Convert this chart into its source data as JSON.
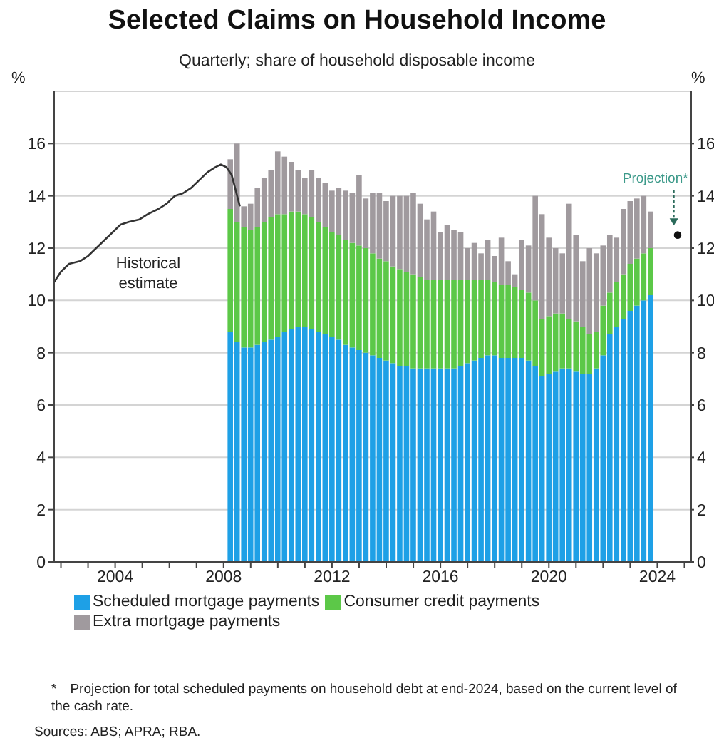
{
  "chart_data": {
    "type": "bar",
    "stacked": true,
    "title": "Selected Claims on Household Income",
    "subtitle": "Quarterly; share of household disposable income",
    "ylabel": "%",
    "y2label": "%",
    "x": [
      2008.25,
      2008.5,
      2008.75,
      2009,
      2009.25,
      2009.5,
      2009.75,
      2010,
      2010.25,
      2010.5,
      2010.75,
      2011,
      2011.25,
      2011.5,
      2011.75,
      2012,
      2012.25,
      2012.5,
      2012.75,
      2013,
      2013.25,
      2013.5,
      2013.75,
      2014,
      2014.25,
      2014.5,
      2014.75,
      2015,
      2015.25,
      2015.5,
      2015.75,
      2016,
      2016.25,
      2016.5,
      2016.75,
      2017,
      2017.25,
      2017.5,
      2017.75,
      2018,
      2018.25,
      2018.5,
      2018.75,
      2019,
      2019.25,
      2019.5,
      2019.75,
      2020,
      2020.25,
      2020.5,
      2020.75,
      2021,
      2021.25,
      2021.5,
      2021.75,
      2022,
      2022.25,
      2022.5,
      2022.75,
      2023,
      2023.25,
      2023.5,
      2023.75
    ],
    "series": [
      {
        "name": "Scheduled mortgage payments",
        "color": "#1ea0e6",
        "values": [
          8.8,
          8.4,
          8.2,
          8.2,
          8.3,
          8.4,
          8.5,
          8.6,
          8.8,
          8.9,
          9.0,
          9.0,
          8.9,
          8.8,
          8.7,
          8.6,
          8.5,
          8.3,
          8.2,
          8.1,
          8.0,
          7.9,
          7.8,
          7.7,
          7.6,
          7.5,
          7.5,
          7.4,
          7.4,
          7.4,
          7.4,
          7.4,
          7.4,
          7.4,
          7.5,
          7.6,
          7.7,
          7.8,
          7.9,
          7.9,
          7.8,
          7.8,
          7.8,
          7.8,
          7.7,
          7.5,
          7.1,
          7.2,
          7.3,
          7.4,
          7.4,
          7.3,
          7.2,
          7.2,
          7.4,
          7.9,
          8.7,
          9.0,
          9.3,
          9.6,
          9.8,
          10.0,
          10.2
        ]
      },
      {
        "name": "Consumer credit payments",
        "color": "#5cc848",
        "values": [
          4.7,
          4.6,
          4.6,
          4.5,
          4.5,
          4.6,
          4.7,
          4.7,
          4.5,
          4.5,
          4.4,
          4.3,
          4.3,
          4.2,
          4.1,
          4.0,
          4.0,
          4.0,
          4.0,
          4.0,
          4.0,
          3.9,
          3.8,
          3.8,
          3.7,
          3.7,
          3.6,
          3.6,
          3.5,
          3.4,
          3.4,
          3.4,
          3.4,
          3.4,
          3.3,
          3.2,
          3.1,
          3.0,
          2.9,
          2.8,
          2.8,
          2.8,
          2.7,
          2.6,
          2.6,
          2.5,
          2.2,
          2.2,
          2.2,
          2.1,
          1.9,
          1.9,
          1.8,
          1.5,
          1.4,
          1.9,
          1.6,
          1.7,
          1.7,
          1.8,
          1.8,
          1.8,
          1.8
        ]
      },
      {
        "name": "Extra mortgage payments",
        "color": "#a09a9e",
        "values": [
          1.9,
          3.0,
          0.8,
          1.0,
          1.5,
          1.7,
          1.8,
          2.4,
          2.2,
          1.9,
          1.6,
          1.4,
          1.8,
          1.7,
          1.7,
          1.6,
          1.8,
          1.9,
          1.9,
          2.7,
          1.9,
          2.3,
          2.5,
          2.3,
          2.7,
          2.8,
          2.9,
          3.1,
          2.8,
          2.3,
          2.6,
          1.8,
          2.1,
          1.9,
          1.8,
          1.2,
          1.4,
          1.0,
          1.5,
          1.0,
          1.8,
          0.9,
          0.5,
          1.9,
          1.8,
          4.0,
          4.0,
          3.0,
          2.5,
          2.3,
          4.4,
          3.3,
          2.5,
          3.3,
          3.0,
          2.3,
          2.2,
          1.7,
          2.5,
          2.4,
          2.3,
          2.2,
          1.4
        ]
      },
      {
        "type": "line",
        "color": "#333333",
        "x": [
          2001.75,
          2002,
          2002.3,
          2002.7,
          2003,
          2003.3,
          2003.6,
          2003.9,
          2004.2,
          2004.5,
          2004.9,
          2005.2,
          2005.6,
          2005.9,
          2006.2,
          2006.5,
          2006.8,
          2007.1,
          2007.4,
          2007.7,
          2007.9,
          2008.1,
          2008.3,
          2008.5,
          2008.6
        ],
        "values": [
          10.7,
          11.1,
          11.4,
          11.5,
          11.7,
          12.0,
          12.3,
          12.6,
          12.9,
          13.0,
          13.1,
          13.3,
          13.5,
          13.7,
          14.0,
          14.1,
          14.3,
          14.6,
          14.9,
          15.1,
          15.2,
          15.1,
          14.8,
          14.0,
          13.6
        ]
      },
      {
        "type": "scatter",
        "name": "Projection*",
        "color": "#111111",
        "marker": "circle",
        "x": [
          2024.75
        ],
        "values": [
          12.5
        ]
      }
    ],
    "xlim": [
      2001.75,
      2025.25
    ],
    "xticks": [
      {
        "value": 2002,
        "label": null
      },
      {
        "value": 2003,
        "label": null
      },
      2004,
      {
        "value": 2005,
        "label": null
      },
      {
        "value": 2006,
        "label": null
      },
      {
        "value": 2007,
        "label": null
      },
      2008,
      {
        "value": 2009,
        "label": null
      },
      {
        "value": 2010,
        "label": null
      },
      {
        "value": 2011,
        "label": null
      },
      2012,
      {
        "value": 2013,
        "label": null
      },
      {
        "value": 2014,
        "label": null
      },
      {
        "value": 2015,
        "label": null
      },
      2016,
      {
        "value": 2017,
        "label": null
      },
      {
        "value": 2018,
        "label": null
      },
      {
        "value": 2019,
        "label": null
      },
      2020,
      {
        "value": 2021,
        "label": null
      },
      {
        "value": 2022,
        "label": null
      },
      {
        "value": 2023,
        "label": null
      },
      2024,
      {
        "value": 2025,
        "label": null
      }
    ],
    "ylim": [
      0,
      18
    ],
    "yticks": [
      0,
      2,
      4,
      6,
      8,
      10,
      12,
      14,
      16
    ],
    "y2lim": [
      0,
      18
    ],
    "y2ticks": [
      0,
      2,
      4,
      6,
      8,
      10,
      12,
      14,
      16
    ],
    "grid": "y",
    "legend": "bottom",
    "annotations": [
      "Historical estimate",
      "* Projection for total scheduled payments on household debt at end-2024, based on the current level of the cash rate.",
      "Sources: ABS; APRA; RBA."
    ]
  }
}
